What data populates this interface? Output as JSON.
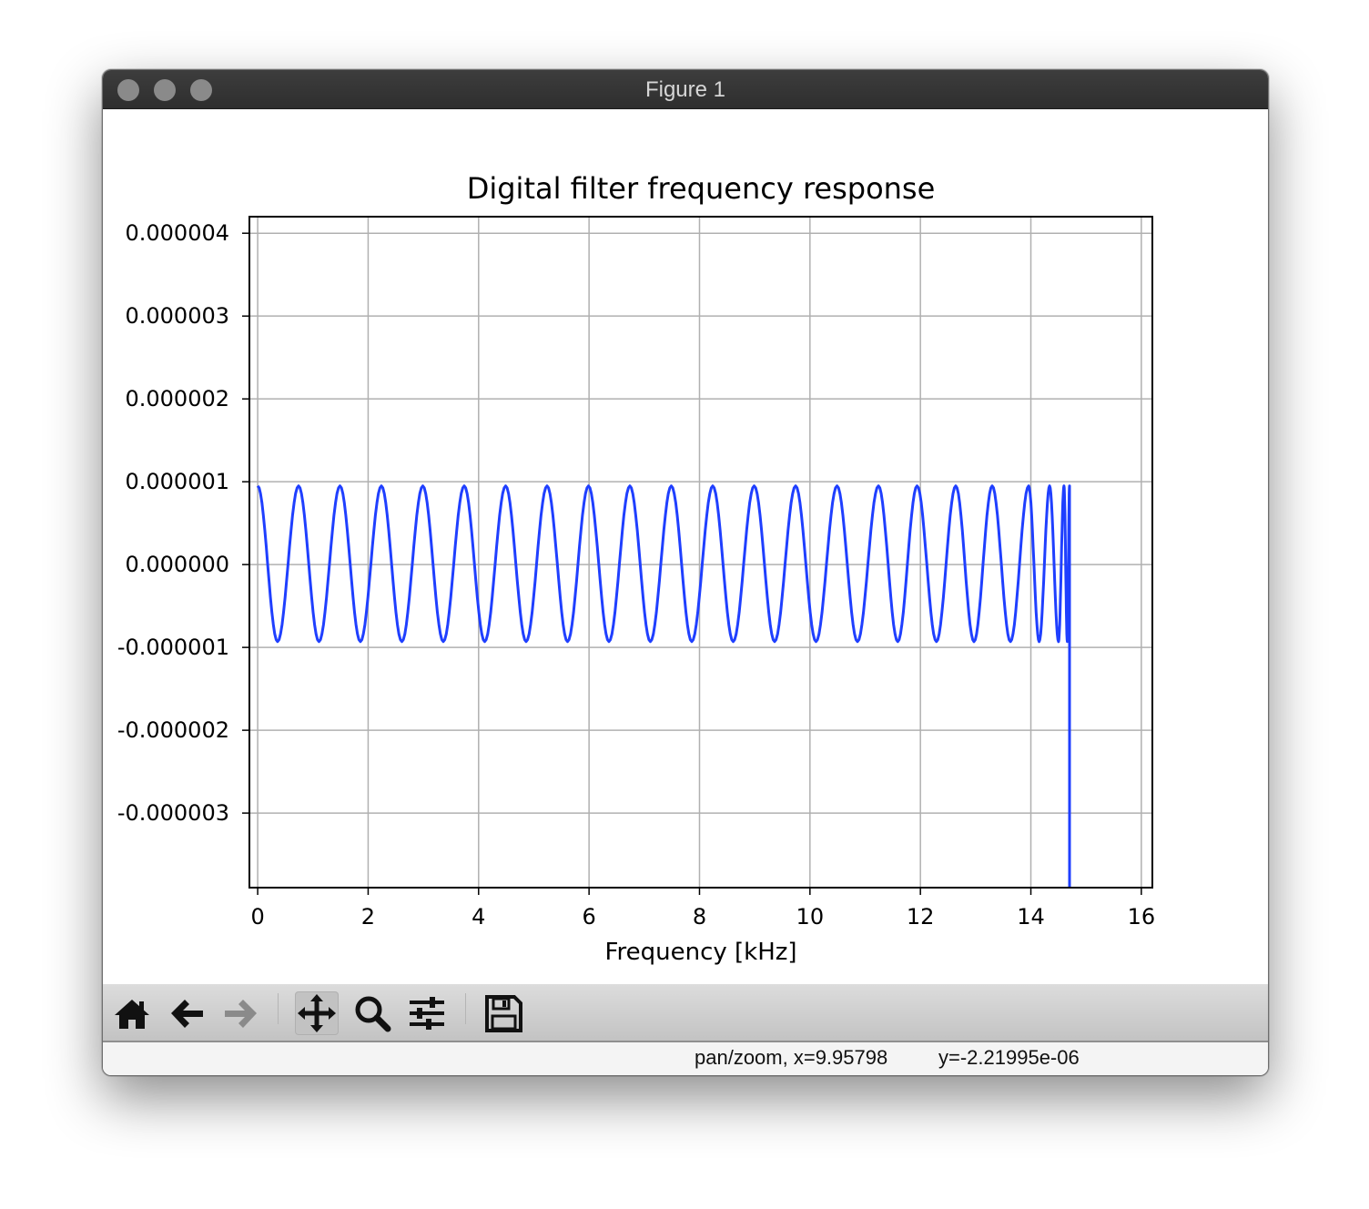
{
  "window": {
    "title": "Figure 1"
  },
  "toolbar": {
    "buttons": [
      {
        "name": "home",
        "icon": "home-icon"
      },
      {
        "name": "back",
        "icon": "arrow-left-icon"
      },
      {
        "name": "forward",
        "icon": "arrow-right-icon",
        "disabled": true
      },
      {
        "name": "pan",
        "icon": "move-icon",
        "active": true
      },
      {
        "name": "zoom",
        "icon": "magnifier-icon"
      },
      {
        "name": "configure",
        "icon": "sliders-icon"
      },
      {
        "name": "save",
        "icon": "floppy-disk-icon"
      }
    ]
  },
  "status": {
    "mode_x": "pan/zoom, x=9.95798",
    "y": "y=-2.21995e-06"
  },
  "colors": {
    "line": "#1f3fff",
    "grid": "#b0b0b0",
    "titlebar": "#333333",
    "toolbar": "#cfcfcf"
  },
  "chart_data": {
    "type": "line",
    "title": "Digital filter frequency response",
    "xlabel": "Frequency [kHz]",
    "ylabel": "",
    "xlim": [
      -0.15,
      16.2
    ],
    "ylim": [
      -3.9e-06,
      4.2e-06
    ],
    "xticks": [
      0,
      2,
      4,
      6,
      8,
      10,
      12,
      14,
      16
    ],
    "xtick_labels": [
      "0",
      "2",
      "4",
      "6",
      "8",
      "10",
      "12",
      "14",
      "16"
    ],
    "yticks": [
      4e-06,
      3e-06,
      2e-06,
      1e-06,
      0.0,
      -1e-06,
      -2e-06,
      -3e-06
    ],
    "ytick_labels": [
      "0.000004",
      "0.000003",
      "0.000002",
      "0.000001",
      "0.000000",
      "-0.000001",
      "-0.000002",
      "-0.000003"
    ],
    "grid": true,
    "series": [
      {
        "x": [
          0.0,
          0.36,
          0.74,
          1.11,
          1.49,
          1.86,
          2.24,
          2.61,
          2.99,
          3.36,
          3.74,
          4.11,
          4.49,
          4.86,
          5.24,
          5.61,
          5.99,
          6.36,
          6.74,
          7.11,
          7.49,
          7.86,
          8.24,
          8.61,
          8.99,
          9.36,
          9.74,
          10.11,
          10.49,
          10.86,
          11.24,
          11.59,
          11.94,
          12.29,
          12.64,
          12.97,
          13.3,
          13.63,
          13.96,
          14.15,
          14.34,
          14.5,
          14.6,
          14.66,
          14.7,
          14.7
        ],
        "y": [
          9.5e-07,
          -9.3e-07,
          9.5e-07,
          -9.3e-07,
          9.5e-07,
          -9.3e-07,
          9.5e-07,
          -9.3e-07,
          9.5e-07,
          -9.3e-07,
          9.5e-07,
          -9.3e-07,
          9.5e-07,
          -9.3e-07,
          9.5e-07,
          -9.3e-07,
          9.5e-07,
          -9.3e-07,
          9.5e-07,
          -9.3e-07,
          9.5e-07,
          -9.3e-07,
          9.5e-07,
          -9.3e-07,
          9.5e-07,
          -9.3e-07,
          9.5e-07,
          -9.3e-07,
          9.5e-07,
          -9.3e-07,
          9.5e-07,
          -9.3e-07,
          9.5e-07,
          -9.3e-07,
          9.5e-07,
          -9.3e-07,
          9.5e-07,
          -9.3e-07,
          9.5e-07,
          -9.3e-07,
          9.5e-07,
          -9.3e-07,
          9.5e-07,
          -9.3e-07,
          9.5e-07,
          -3.9e-06
        ]
      }
    ]
  }
}
